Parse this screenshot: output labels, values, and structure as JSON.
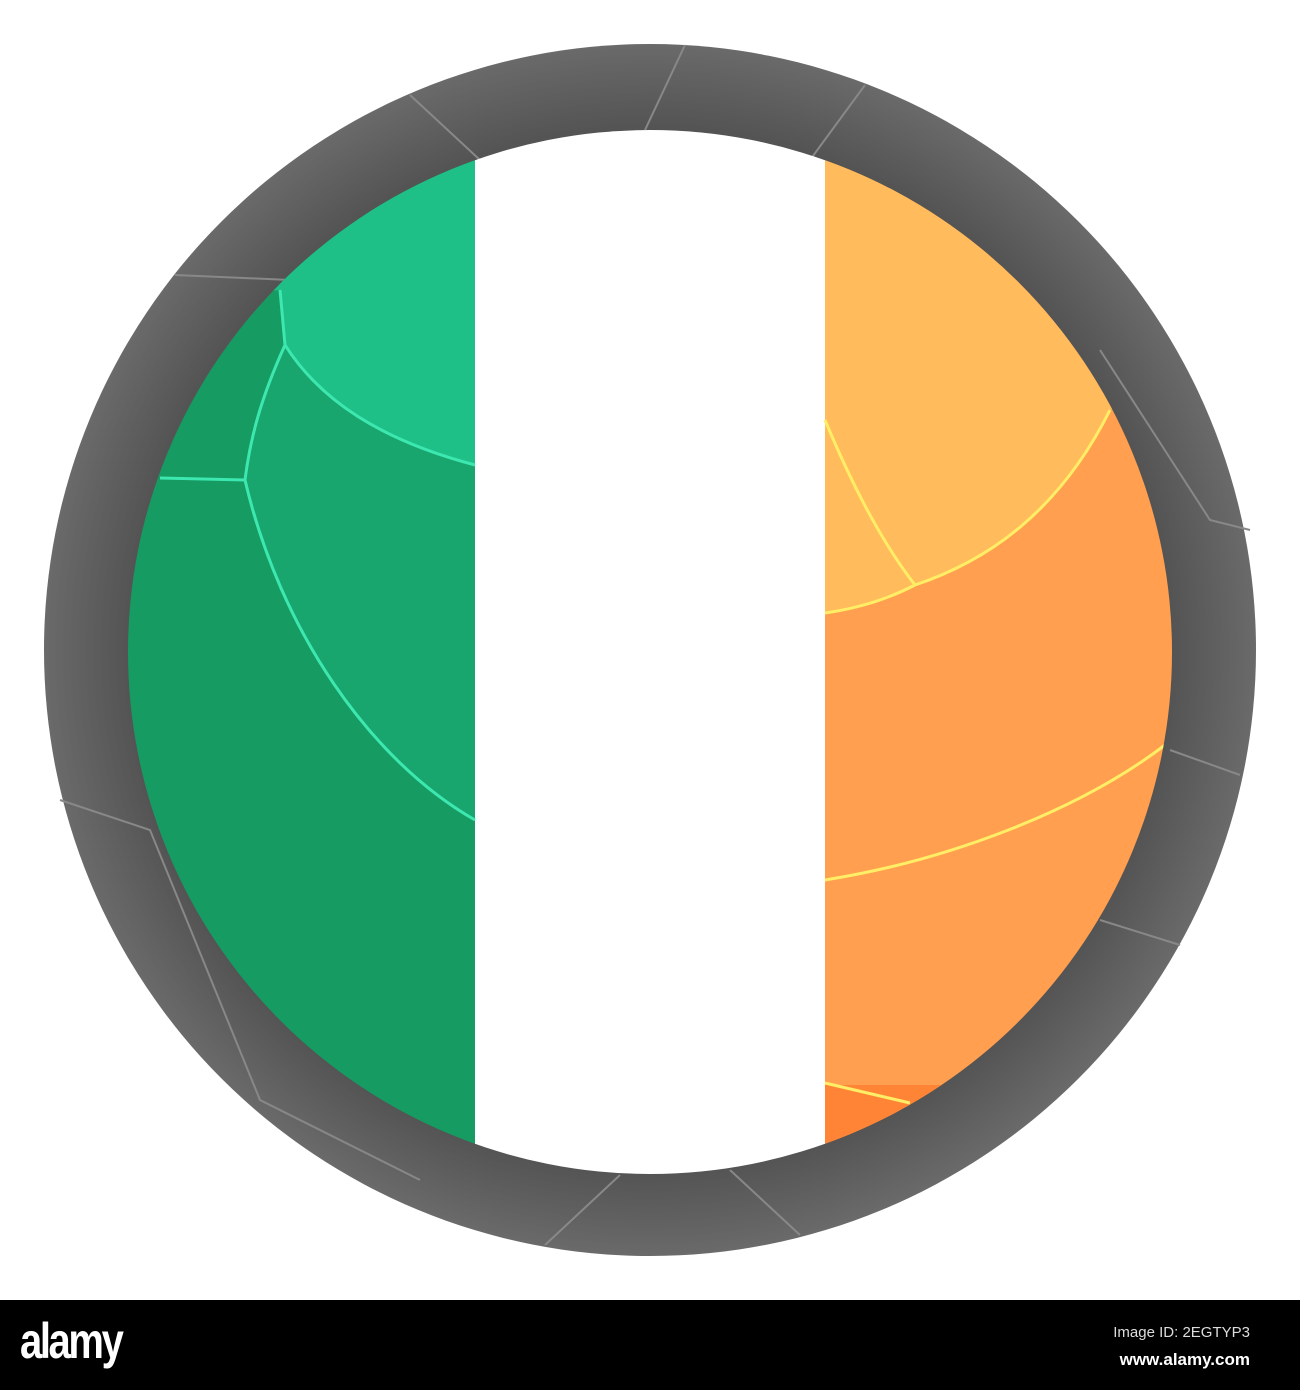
{
  "image": {
    "subject": "flag-of-ireland-round-button",
    "colors": {
      "green": "#169b62",
      "white": "#ffffff",
      "orange": "#ff9f4f",
      "ring": "#555555"
    }
  },
  "footer": {
    "logo": "alamy",
    "image_id": "Image ID: 2EGTYP3",
    "url": "www.alamy.com"
  }
}
